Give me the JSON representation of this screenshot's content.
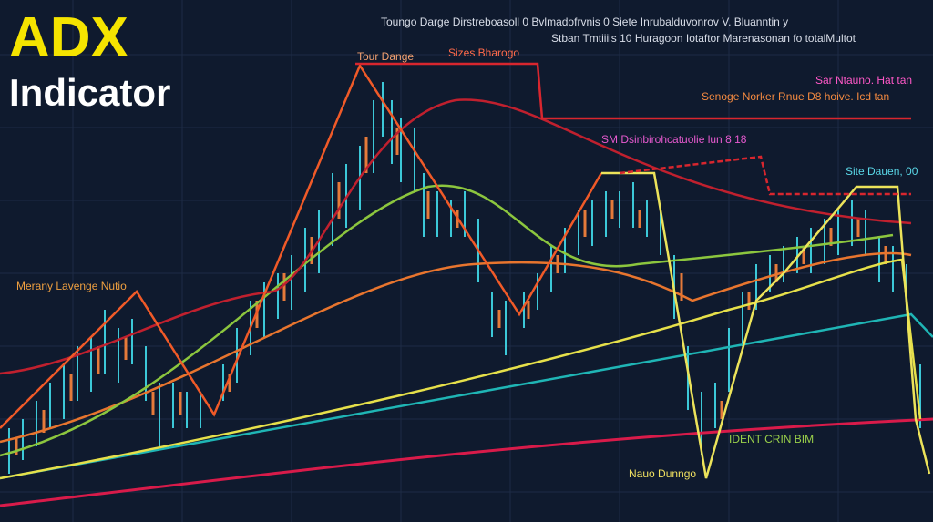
{
  "title": {
    "line1": "ADX",
    "line2": "Indicator"
  },
  "annotations": [
    "Toungo Darge Dirstreboasoll 0 Bvlmadofrvnis 0 Siete Inrubalduvonrov V. Bluanntin y",
    "Stban Tmtiiiis 10 Huragoon Iotaftor Marenasonan fo totalMultot",
    "Tour Dange",
    "Sizes Bharogo",
    "Sar Ntauno. Hat tan",
    "Senoge Norker Rnue D8 hoive. Icd tan",
    "SM Dsinbirohcatuolie lun 8 18",
    "Site Dauen, 00",
    "Merany Lavenge Nutio",
    "IDENT CRIN BIM",
    "Nauo Dunngo"
  ]
}
